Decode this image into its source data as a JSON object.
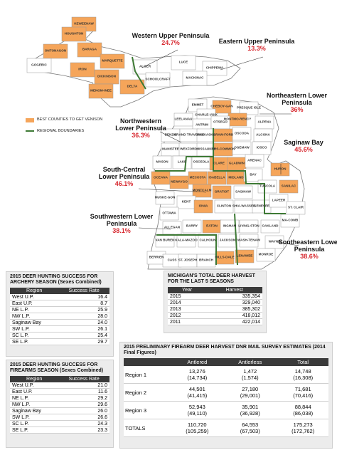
{
  "map": {
    "regions": [
      {
        "name": "Western Upper Peninsula",
        "value": "24.7%"
      },
      {
        "name": "Eastern Upper Peninsula",
        "value": "13.3%"
      },
      {
        "name": "Northeastern Lower Peninsula",
        "value": "36%"
      },
      {
        "name": "Northwestern Lower Peninsula",
        "value": "36.3%"
      },
      {
        "name": "Saginaw Bay",
        "value": "45.6%"
      },
      {
        "name": "South-Central Lower Peninsula",
        "value": "46.1%"
      },
      {
        "name": "Southwestern Lower Peninsula",
        "value": "38.1%"
      },
      {
        "name": "Southeastern Lower Peninsula",
        "value": "38.6%"
      }
    ],
    "legend": [
      "BEST COUNTIES TO GET VENISON",
      "REGIONAL BOUNDARIES"
    ],
    "counties": [
      "KEWEENAW",
      "HOUGHTON",
      "ONTONAGON",
      "BARAGA",
      "GOGEBIC",
      "IRON",
      "MARQUETTE",
      "DICKINSON",
      "MENOM-INEE",
      "DELTA",
      "ALGER",
      "SCHOOLCRAFT",
      "LUCE",
      "CHIPPEWA",
      "MACKINAC",
      "EMMET",
      "CHEBOY-GAN",
      "PRESQUE ISLE",
      "CHARLE-VOIX",
      "MONTMO-RENCY",
      "ALPENA",
      "ANTRIM",
      "OTSEGO",
      "LEELANAU",
      "BENZIE",
      "GRAND TRAVERSE",
      "KALKASKA",
      "CRAW-FORD",
      "OSCODA",
      "ALCONA",
      "MANISTEE",
      "WEXFORD",
      "MISSAUKEE",
      "ROS-COMMON",
      "OGEMAW",
      "IOSCO",
      "MASON",
      "LAKE",
      "OSCEOLA",
      "CLARE",
      "GLADWIN",
      "ARENAC",
      "OCEANA",
      "NEWAYGO",
      "MECOSTA",
      "ISABELLA",
      "MIDLAND",
      "BAY",
      "HURON",
      "MUSKE-GON",
      "MONTCALM",
      "GRATIOT",
      "SAGINAW",
      "TUSCOLA",
      "SANILAC",
      "KENT",
      "OTTAWA",
      "IONIA",
      "CLINTON",
      "SHIA-WASSEE",
      "GENESEE",
      "LAPEER",
      "ST. CLAIR",
      "ALLEGAN",
      "BARRY",
      "EATON",
      "INGHAM",
      "LIVING-STON",
      "OAKLAND",
      "MA-COMB",
      "VAN BUREN",
      "KALA-MAZOO",
      "CALHOUN",
      "JACKSON",
      "WASH-TENAW",
      "WAYNE",
      "BERRIEN",
      "CASS",
      "ST. JOSEPH",
      "BRANCH",
      "HILLS-DALE",
      "LENAWEE",
      "MONROE"
    ]
  },
  "tables": {
    "archery": {
      "title": "2015 DEER HUNTING SUCCESS FOR ARCHERY SEASON (Sexes Combined)",
      "columns": [
        "Region",
        "Success Rate"
      ],
      "rows": [
        [
          "West U.P.",
          "16.4"
        ],
        [
          "East U.P.",
          "8.7"
        ],
        [
          "NE L.P.",
          "25.9"
        ],
        [
          "NW L.P.",
          "28.0"
        ],
        [
          "Saginaw Bay",
          "24.0"
        ],
        [
          "SW L.P.",
          "26.1"
        ],
        [
          "SC L.P.",
          "25.4"
        ],
        [
          "SE L.P.",
          "29.7"
        ]
      ]
    },
    "firearms": {
      "title": "2015 DEER HUNTING SUCCESS FOR FIREARMS SEASON (Sexes Combined)",
      "columns": [
        "Region",
        "Success Rate"
      ],
      "rows": [
        [
          "West U.P.",
          "21.0"
        ],
        [
          "East U.P.",
          "11.6"
        ],
        [
          "NE L.P.",
          "29.2"
        ],
        [
          "NW L.P.",
          "29.6"
        ],
        [
          "Saginaw Bay",
          "26.0"
        ],
        [
          "SW L.P.",
          "26.6"
        ],
        [
          "SC L.P.",
          "24.3"
        ],
        [
          "SE L.P.",
          "23.3"
        ]
      ]
    },
    "total": {
      "title": "MICHIGAN'S TOTAL DEER HARVEST FOR THE LAST 5 SEASONS",
      "columns": [
        "Year",
        "Harvest"
      ],
      "rows": [
        [
          "2015",
          "335,354"
        ],
        [
          "2014",
          "329,040"
        ],
        [
          "2013",
          "385,302"
        ],
        [
          "2012",
          "418,012"
        ],
        [
          "2011",
          "422,014"
        ]
      ]
    },
    "prelim": {
      "title": "2015 PRELIMINARY FIREARM DEER HARVEST DNR MAIL SURVEY ESTIMATES (2014 Final Figures)",
      "columns": [
        "Antlered",
        "Antlerless",
        "Total"
      ],
      "rows": [
        [
          "Region 1",
          [
            "13,276",
            "(14,734)"
          ],
          [
            "1,472",
            "(1,574)"
          ],
          [
            "14,748",
            "(16,308)"
          ]
        ],
        [
          "Region 2",
          [
            "44,501",
            "(41,415)"
          ],
          [
            "27,180",
            "(29,001)"
          ],
          [
            "71,681",
            "(70,416)"
          ]
        ],
        [
          "Region 3",
          [
            "52,943",
            "(49,110)"
          ],
          [
            "35,901",
            "(36,928)"
          ],
          [
            "88,844",
            "(86,038)"
          ]
        ],
        [
          "TOTALS",
          [
            "110,720",
            "(105,259)"
          ],
          [
            "64,553",
            "(67,503)"
          ],
          [
            "175,273",
            "(172,762)"
          ]
        ]
      ]
    }
  }
}
